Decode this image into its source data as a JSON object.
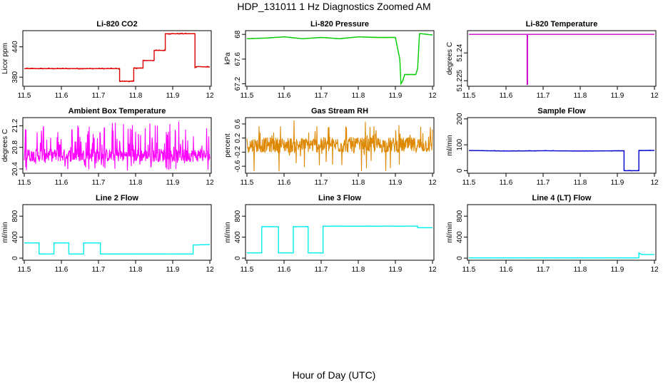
{
  "title": "HDP_131011  1 Hz Diagnostics Zoomed AM",
  "xlabel": "Hour of Day (UTC)",
  "chart_data": [
    {
      "type": "line",
      "title": "Li-820 CO2",
      "ylabel": "Licor ppm",
      "xlim": [
        11.5,
        12.0
      ],
      "ylim": [
        362,
        472
      ],
      "xticks": [
        11.5,
        11.6,
        11.7,
        11.8,
        11.9,
        12.0
      ],
      "yticks": [
        380,
        440
      ],
      "color": "#dd0000",
      "noise": 1.5,
      "series": [
        {
          "x": [
            11.5,
            11.757,
            11.757,
            11.795,
            11.795,
            11.82,
            11.82,
            11.85,
            11.85,
            11.88,
            11.88,
            11.96,
            11.96,
            11.965,
            12.0
          ],
          "y": [
            397,
            397,
            372,
            372,
            398,
            398,
            413,
            413,
            433,
            433,
            466,
            466,
            399,
            401,
            400
          ]
        }
      ]
    },
    {
      "type": "line",
      "title": "Li-820 Pressure",
      "ylabel": "kPa",
      "xlim": [
        11.5,
        12.0
      ],
      "ylim": [
        67.16,
        68.06
      ],
      "xticks": [
        11.5,
        11.6,
        11.7,
        11.8,
        11.9,
        12.0
      ],
      "yticks": [
        67.2,
        67.6,
        68.0
      ],
      "color": "#00cc00",
      "noise": 0.005,
      "series": [
        {
          "x": [
            11.5,
            11.55,
            11.6,
            11.65,
            11.7,
            11.75,
            11.8,
            11.85,
            11.9,
            11.912,
            11.915,
            11.92,
            11.925,
            11.955,
            11.96,
            11.965,
            11.97,
            12.0
          ],
          "y": [
            67.93,
            67.94,
            67.96,
            67.93,
            67.95,
            67.93,
            67.96,
            67.95,
            67.95,
            67.6,
            67.2,
            67.25,
            67.35,
            67.35,
            67.45,
            68.01,
            68.01,
            67.99
          ]
        }
      ]
    },
    {
      "type": "line",
      "title": "Li-820 Temperature",
      "ylabel": "degrees C",
      "xlim": [
        11.5,
        12.0
      ],
      "ylim": [
        51.222,
        51.252
      ],
      "xticks": [
        11.5,
        11.6,
        11.7,
        11.8,
        11.9,
        12.0
      ],
      "yticks": [
        51.225,
        51.24
      ],
      "color": "#cc00cc",
      "noise": 0,
      "series": [
        {
          "x": [
            11.5,
            11.657,
            11.657,
            11.658,
            11.658,
            12.0
          ],
          "y": [
            51.25,
            51.25,
            51.223,
            51.223,
            51.25,
            51.25
          ]
        }
      ]
    },
    {
      "type": "line",
      "title": "Ambient Box Temperature",
      "ylabel": "degrees C",
      "xlim": [
        11.5,
        12.0
      ],
      "ylim": [
        20.32,
        21.35
      ],
      "xticks": [
        11.5,
        11.6,
        11.7,
        11.8,
        11.9,
        12.0
      ],
      "yticks": [
        20.4,
        20.8,
        21.2
      ],
      "color": "#ff00ff",
      "noise": 0,
      "series": [
        {
          "x": [
            11.5,
            12.0
          ],
          "y": [
            20.65,
            20.65
          ]
        }
      ],
      "scatter_band": {
        "low": 20.37,
        "high": 21.28,
        "center": 20.65,
        "spread": 0.12,
        "spike_rate": 0.3
      }
    },
    {
      "type": "line",
      "title": "Gas Stream RH",
      "ylabel": "percent",
      "xlim": [
        11.5,
        12.0
      ],
      "ylim": [
        -0.8,
        0.78
      ],
      "xticks": [
        11.5,
        11.6,
        11.7,
        11.8,
        11.9,
        12.0
      ],
      "yticks": [
        -0.6,
        -0.2,
        0.2,
        0.6
      ],
      "color": "#dd8800",
      "noise": 0,
      "series": [
        {
          "x": [
            11.5,
            12.0
          ],
          "y": [
            0.0,
            0.0
          ]
        }
      ],
      "scatter_band": {
        "low": -0.75,
        "high": 0.72,
        "center": 0.0,
        "spread": 0.22,
        "spike_rate": 0.12
      }
    },
    {
      "type": "line",
      "title": "Sample Flow",
      "ylabel": "ml/min",
      "xlim": [
        11.5,
        12.0
      ],
      "ylim": [
        -10,
        205
      ],
      "xticks": [
        11.5,
        11.6,
        11.7,
        11.8,
        11.9,
        12.0
      ],
      "yticks": [
        0,
        100,
        200
      ],
      "color": "#0000cc",
      "noise": 1.5,
      "series": [
        {
          "x": [
            11.5,
            11.6,
            11.7,
            11.8,
            11.918,
            11.918,
            11.958,
            11.958,
            12.0
          ],
          "y": [
            78,
            76,
            77,
            76,
            77,
            0,
            0,
            78,
            78
          ]
        }
      ]
    },
    {
      "type": "line",
      "title": "Line 2 Flow",
      "ylabel": "ml/min",
      "xlim": [
        11.5,
        12.0
      ],
      "ylim": [
        -40,
        1020
      ],
      "xticks": [
        11.5,
        11.6,
        11.7,
        11.8,
        11.9,
        12.0
      ],
      "yticks": [
        0,
        400,
        800
      ],
      "color": "#00eeee",
      "noise": 5,
      "series": [
        {
          "x": [
            11.5,
            11.54,
            11.54,
            11.58,
            11.58,
            11.62,
            11.62,
            11.66,
            11.66,
            11.705,
            11.705,
            11.955,
            11.955,
            12.0
          ],
          "y": [
            290,
            290,
            80,
            80,
            290,
            290,
            80,
            80,
            290,
            290,
            80,
            80,
            250,
            260
          ]
        }
      ]
    },
    {
      "type": "line",
      "title": "Line 3 Flow",
      "ylabel": "ml/min",
      "xlim": [
        11.5,
        12.0
      ],
      "ylim": [
        -40,
        1020
      ],
      "xticks": [
        11.5,
        11.6,
        11.7,
        11.8,
        11.9,
        12.0
      ],
      "yticks": [
        0,
        400,
        800
      ],
      "color": "#00eeee",
      "noise": 5,
      "series": [
        {
          "x": [
            11.5,
            11.54,
            11.54,
            11.585,
            11.585,
            11.625,
            11.625,
            11.665,
            11.665,
            11.705,
            11.705,
            11.96,
            11.96,
            12.0
          ],
          "y": [
            100,
            100,
            600,
            600,
            100,
            100,
            600,
            600,
            100,
            100,
            610,
            610,
            580,
            580
          ]
        }
      ]
    },
    {
      "type": "line",
      "title": "Line 4 (LT) Flow",
      "ylabel": "ml/min",
      "xlim": [
        11.5,
        12.0
      ],
      "ylim": [
        -40,
        1020
      ],
      "xticks": [
        11.5,
        11.6,
        11.7,
        11.8,
        11.9,
        12.0
      ],
      "yticks": [
        0,
        400,
        800
      ],
      "color": "#00eeee",
      "noise": 2,
      "series": [
        {
          "x": [
            11.5,
            11.958,
            11.958,
            11.965,
            12.0
          ],
          "y": [
            5,
            5,
            100,
            70,
            70
          ]
        }
      ]
    }
  ]
}
